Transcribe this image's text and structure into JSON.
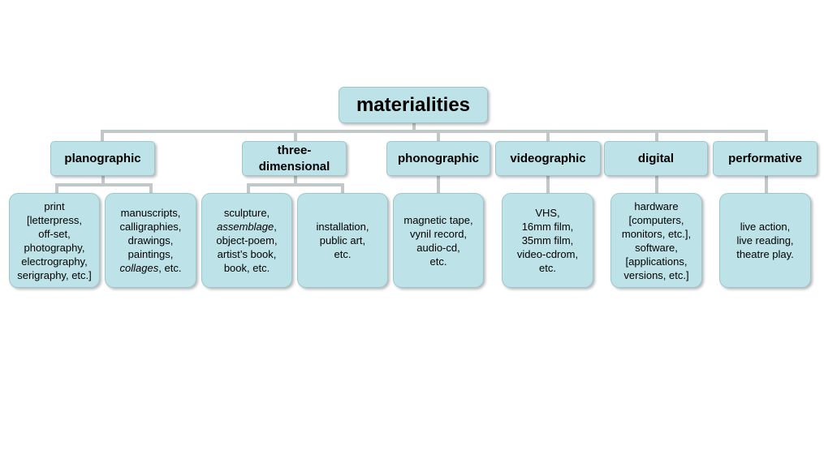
{
  "root": {
    "label": "materialities"
  },
  "categories": [
    {
      "id": "planographic",
      "label": "planographic"
    },
    {
      "id": "three-dimensional",
      "label": "three-\ndimensional"
    },
    {
      "id": "phonographic",
      "label": "phonographic"
    },
    {
      "id": "videographic",
      "label": "videographic"
    },
    {
      "id": "digital",
      "label": "digital"
    },
    {
      "id": "performative",
      "label": "performative"
    }
  ],
  "leaves": [
    {
      "category": "planographic",
      "text": "print\n[letterpress,\noff-set,\nphotography,\nelectrography,\nserigraphy, etc.]",
      "italic": []
    },
    {
      "category": "planographic",
      "text": "manuscripts,\ncalligraphies,\ndrawings,\npaintings,\ncollages, etc.",
      "italic": [
        "collages"
      ]
    },
    {
      "category": "three-dimensional",
      "text": "sculpture,\nassemblage,\nobject-poem,\nartist’s book,\nbook, etc.",
      "italic": [
        "assemblage"
      ]
    },
    {
      "category": "three-dimensional",
      "text": "installation,\npublic art,\netc.",
      "italic": []
    },
    {
      "category": "phonographic",
      "text": "magnetic tape,\nvynil record,\naudio-cd,\netc.",
      "italic": []
    },
    {
      "category": "videographic",
      "text": "VHS,\n16mm film,\n35mm film,\nvideo-cdrom,\netc.",
      "italic": []
    },
    {
      "category": "digital",
      "text": "hardware\n[computers,\nmonitors, etc.],\nsoftware,\n[applications,\nversions, etc.]",
      "italic": []
    },
    {
      "category": "performative",
      "text": "live action,\nlive reading,\ntheatre play.",
      "italic": []
    }
  ]
}
